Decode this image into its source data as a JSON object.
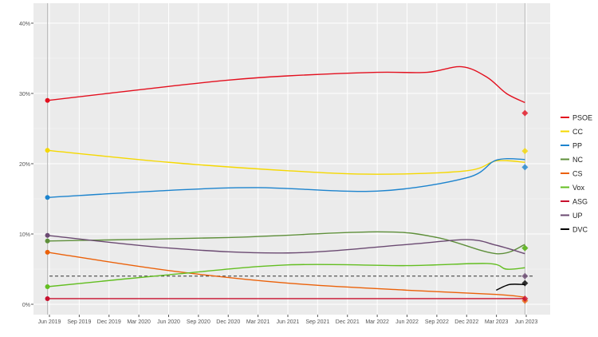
{
  "chart_data": {
    "type": "line",
    "title": "",
    "xlabel": "",
    "ylabel": "",
    "ylim": [
      -1,
      43
    ],
    "xlim": [
      "2019-04-10",
      "2023-07-15"
    ],
    "grid": true,
    "legend_placement": "right",
    "x_ticks": [
      "Jun 2019",
      "Sep 2019",
      "Dec 2019",
      "Mar 2020",
      "Jun 2020",
      "Sep 2020",
      "Dec 2020",
      "Mar 2021",
      "Jun 2021",
      "Sep 2021",
      "Dec 2021",
      "Mar 2022",
      "Jun 2022",
      "Sep 2022",
      "Dec 2022",
      "Mar 2023",
      "Jun 2023"
    ],
    "y_ticks": [
      "0%",
      "10%",
      "20%",
      "30%",
      "40%"
    ],
    "threshold": {
      "value": 4,
      "style": "dashed"
    },
    "series": [
      {
        "name": "PSOE",
        "color": "#e3101f",
        "trend": [
          [
            "2019-05-26",
            29
          ],
          [
            "2020-06-01",
            31
          ],
          [
            "2020-12-01",
            31.9
          ],
          [
            "2021-06-01",
            32.5
          ],
          [
            "2022-03-01",
            33
          ],
          [
            "2022-08-01",
            33
          ],
          [
            "2022-11-15",
            33.8
          ],
          [
            "2023-02-01",
            32.3
          ],
          [
            "2023-04-01",
            30
          ],
          [
            "2023-05-28",
            28.7
          ]
        ],
        "result": 27.2
      },
      {
        "name": "CC",
        "color": "#f5d800",
        "trend": [
          [
            "2019-05-26",
            21.9
          ],
          [
            "2020-06-01",
            20.2
          ],
          [
            "2021-06-01",
            19
          ],
          [
            "2022-03-01",
            18.5
          ],
          [
            "2022-12-01",
            19
          ],
          [
            "2023-03-01",
            20.4
          ],
          [
            "2023-05-28",
            20.2
          ]
        ],
        "result": 21.8
      },
      {
        "name": "PP",
        "color": "#1d84ce",
        "trend": [
          [
            "2019-05-26",
            15.2
          ],
          [
            "2020-06-01",
            16.2
          ],
          [
            "2021-03-01",
            16.6
          ],
          [
            "2022-03-01",
            16.1
          ],
          [
            "2022-12-01",
            18
          ],
          [
            "2023-03-01",
            20.5
          ],
          [
            "2023-05-28",
            20.6
          ]
        ],
        "result": 19.5
      },
      {
        "name": "NC",
        "color": "#5e8f3a",
        "trend": [
          [
            "2019-05-26",
            9
          ],
          [
            "2020-12-01",
            9.5
          ],
          [
            "2022-03-01",
            10.3
          ],
          [
            "2022-09-01",
            9.5
          ],
          [
            "2023-03-01",
            7.2
          ],
          [
            "2023-05-28",
            8.5
          ]
        ],
        "result": 8
      },
      {
        "name": "CS",
        "color": "#eb6109",
        "trend": [
          [
            "2019-05-26",
            7.4
          ],
          [
            "2020-06-01",
            4.8
          ],
          [
            "2021-06-01",
            3
          ],
          [
            "2022-06-01",
            2
          ],
          [
            "2023-03-01",
            1.4
          ],
          [
            "2023-05-28",
            1
          ]
        ],
        "result": 0.5
      },
      {
        "name": "Vox",
        "color": "#63be21",
        "trend": [
          [
            "2019-05-26",
            2.5
          ],
          [
            "2020-06-01",
            4.2
          ],
          [
            "2021-06-01",
            5.6
          ],
          [
            "2022-06-01",
            5.5
          ],
          [
            "2023-02-01",
            5.8
          ],
          [
            "2023-04-01",
            5
          ],
          [
            "2023-05-28",
            5.2
          ]
        ],
        "result": 8
      },
      {
        "name": "ASG",
        "color": "#c8102e",
        "trend": [
          [
            "2019-05-26",
            0.8
          ],
          [
            "2023-05-28",
            0.8
          ]
        ],
        "result": 0.8
      },
      {
        "name": "UP",
        "color": "#6b4a72",
        "trend": [
          [
            "2019-05-26",
            9.8
          ],
          [
            "2020-06-01",
            8
          ],
          [
            "2021-06-01",
            7.3
          ],
          [
            "2022-06-01",
            8.5
          ],
          [
            "2022-12-01",
            9.2
          ],
          [
            "2023-03-01",
            8.4
          ],
          [
            "2023-05-28",
            7.2
          ]
        ],
        "result": 4
      },
      {
        "name": "DVC",
        "color": "#000000",
        "trend": [
          [
            "2023-03-01",
            2
          ],
          [
            "2023-04-10",
            2.8
          ],
          [
            "2023-05-28",
            2.8
          ]
        ],
        "result": 3
      }
    ]
  }
}
